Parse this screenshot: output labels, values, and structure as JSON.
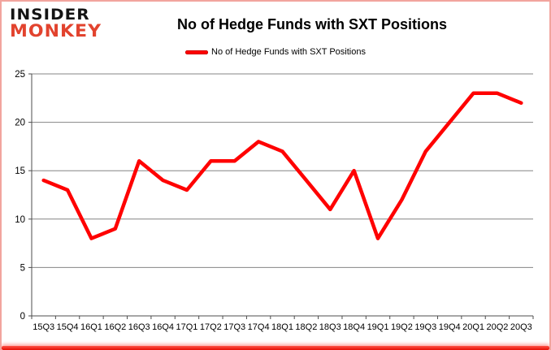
{
  "branding": {
    "logo_top": "INSIDER",
    "logo_bottom": "MONKEY"
  },
  "header": {
    "title": "No of Hedge Funds with SXT Positions"
  },
  "legend": {
    "label": "No of Hedge Funds with SXT Positions"
  },
  "chart_data": {
    "type": "line",
    "title": "No of Hedge Funds with SXT Positions",
    "categories": [
      "15Q3",
      "15Q4",
      "16Q1",
      "16Q2",
      "16Q3",
      "16Q4",
      "17Q1",
      "17Q2",
      "17Q3",
      "17Q4",
      "18Q1",
      "18Q2",
      "18Q3",
      "18Q4",
      "19Q1",
      "19Q2",
      "19Q3",
      "19Q4",
      "20Q1",
      "20Q2",
      "20Q3"
    ],
    "series": [
      {
        "name": "No of Hedge Funds with SXT Positions",
        "values": [
          14,
          13,
          8,
          9,
          16,
          14,
          13,
          16,
          16,
          18,
          17,
          14,
          11,
          15,
          8,
          12,
          17,
          20,
          23,
          23,
          22
        ]
      }
    ],
    "xlabel": "",
    "ylabel": "",
    "ylim": [
      0,
      25
    ],
    "yticks": [
      0,
      5,
      10,
      15,
      20,
      25
    ],
    "grid": "horizontal",
    "legend_position": "top-center",
    "colors": {
      "line": "#ff0000",
      "gridline": "#848484",
      "axis": "#4d4d4d",
      "tick_text": "#000000",
      "logo_red": "#e2432e",
      "accent_bar": "#e60e04"
    }
  }
}
